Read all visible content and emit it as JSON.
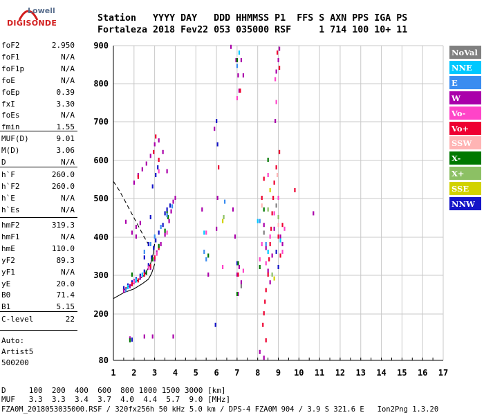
{
  "logo": {
    "line1": "Lowell",
    "line2": "DIGISONDE"
  },
  "header": {
    "line1": "Station   YYYY DAY   DDD HHMMSS P1  FFS S AXN PPS IGA PS",
    "line2": "Fortaleza 2018 Fev22 053 035000 RSF     1 714 100 10+ 11"
  },
  "parameters": {
    "group1": [
      {
        "name": "foF2",
        "value": "2.950"
      },
      {
        "name": "foF1",
        "value": "N/A"
      },
      {
        "name": "foF1p",
        "value": "N/A"
      },
      {
        "name": "foE",
        "value": "N/A"
      },
      {
        "name": "foEp",
        "value": "0.39"
      },
      {
        "name": "fxI",
        "value": "3.30"
      },
      {
        "name": "foEs",
        "value": "N/A"
      },
      {
        "name": "fmin",
        "value": "1.55"
      }
    ],
    "group2": [
      {
        "name": "MUF(D)",
        "value": "9.01"
      },
      {
        "name": "M(D)",
        "value": "3.06"
      },
      {
        "name": "D",
        "value": "N/A"
      }
    ],
    "group3": [
      {
        "name": "h`F",
        "value": "260.0"
      },
      {
        "name": "h`F2",
        "value": "260.0"
      },
      {
        "name": "h`E",
        "value": "N/A"
      },
      {
        "name": "h`Es",
        "value": "N/A"
      }
    ],
    "group4": [
      {
        "name": "hmF2",
        "value": "319.3"
      },
      {
        "name": "hmF1",
        "value": "N/A"
      },
      {
        "name": "hmE",
        "value": "110.0"
      },
      {
        "name": "yF2",
        "value": "89.3"
      },
      {
        "name": "yF1",
        "value": "N/A"
      },
      {
        "name": "yE",
        "value": "20.0"
      },
      {
        "name": "B0",
        "value": "71.4"
      },
      {
        "name": "B1",
        "value": "5.15"
      }
    ],
    "group5": [
      {
        "name": "C-level",
        "value": "22"
      }
    ],
    "auto": {
      "line1": "Auto:",
      "line2": "Artist5",
      "line3": "500200"
    }
  },
  "legend": [
    {
      "label": "NoVal",
      "color": "#808080",
      "text": "#ffffff"
    },
    {
      "label": "NNE",
      "color": "#00c8ff",
      "text": "#ffffff"
    },
    {
      "label": "E",
      "color": "#3a8cf0",
      "text": "#ffffff"
    },
    {
      "label": "W",
      "color": "#aa00aa",
      "text": "#ffffff"
    },
    {
      "label": "Vo-",
      "color": "#ff44c8",
      "text": "#ffffff"
    },
    {
      "label": "Vo+",
      "color": "#ee0030",
      "text": "#ffffff"
    },
    {
      "label": "SSW",
      "color": "#ffb4b4",
      "text": "#ffffff"
    },
    {
      "label": "X-",
      "color": "#007800",
      "text": "#ffffff"
    },
    {
      "label": "X+",
      "color": "#8cc064",
      "text": "#ffffff"
    },
    {
      "label": "SSE",
      "color": "#d2d200",
      "text": "#ffffff"
    },
    {
      "label": "NNW",
      "color": "#1414c8",
      "text": "#ffffff"
    }
  ],
  "footer": {
    "d_row": "D     100  200  400  600  800 1000 1500 3000 [km]",
    "muf_row": "MUF   3.3  3.3  3.4  3.7  4.0  4.4  5.7  9.0 [MHz]",
    "file_row": "FZA0M_2018053035000.RSF / 320fx256h 50 kHz 5.0 km / DPS-4 FZA0M 904 / 3.9 S 321.6 E   Ion2Png 1.3.20"
  },
  "chart_data": {
    "type": "scatter",
    "title": "",
    "xlabel": "",
    "ylabel": "",
    "xlim": [
      1,
      17
    ],
    "ylim": [
      80,
      900
    ],
    "x_ticks": [
      1,
      2,
      3,
      4,
      5,
      6,
      7,
      8,
      9,
      10,
      11,
      12,
      13,
      14,
      15,
      16,
      17
    ],
    "y_ticks": [
      80,
      200,
      300,
      400,
      500,
      600,
      700,
      800,
      900
    ],
    "y_scale": "reciprocal-like (ionogram virtual height)",
    "grid": true,
    "series": [
      {
        "name": "NNW",
        "color": "#1414c8",
        "points": [
          [
            1.5,
            265
          ],
          [
            1.7,
            272
          ],
          [
            1.9,
            280
          ],
          [
            2.1,
            288
          ],
          [
            2.3,
            297
          ],
          [
            2.5,
            308
          ],
          [
            2.7,
            325
          ],
          [
            2.85,
            345
          ],
          [
            2.95,
            370
          ],
          [
            3.05,
            390
          ],
          [
            3.2,
            410
          ],
          [
            3.4,
            430
          ],
          [
            3.5,
            460
          ],
          [
            3.6,
            470
          ],
          [
            3.75,
            480
          ],
          [
            2.5,
            345
          ],
          [
            2.7,
            380
          ],
          [
            2.8,
            450
          ],
          [
            2.9,
            530
          ],
          [
            3.05,
            560
          ],
          [
            3.15,
            580
          ],
          [
            6.0,
            700
          ],
          [
            6.05,
            640
          ],
          [
            5.95,
            170
          ],
          [
            7.0,
            330
          ],
          [
            9.0,
            320
          ],
          [
            8.9,
            360
          ],
          [
            1.9,
            132
          ]
        ]
      },
      {
        "name": "W",
        "color": "#aa00aa",
        "points": [
          [
            1.5,
            258
          ],
          [
            1.8,
            270
          ],
          [
            2.0,
            283
          ],
          [
            2.3,
            292
          ],
          [
            2.6,
            305
          ],
          [
            2.8,
            318
          ],
          [
            3.0,
            340
          ],
          [
            3.1,
            358
          ],
          [
            3.3,
            380
          ],
          [
            3.5,
            405
          ],
          [
            3.7,
            440
          ],
          [
            3.8,
            465
          ],
          [
            3.9,
            490
          ],
          [
            4.0,
            500
          ],
          [
            2.0,
            540
          ],
          [
            2.2,
            560
          ],
          [
            2.4,
            575
          ],
          [
            2.6,
            590
          ],
          [
            2.8,
            610
          ],
          [
            3.0,
            640
          ],
          [
            3.2,
            650
          ],
          [
            3.4,
            620
          ],
          [
            3.6,
            570
          ],
          [
            1.9,
            410
          ],
          [
            2.1,
            425
          ],
          [
            2.3,
            435
          ],
          [
            1.6,
            438
          ],
          [
            2.1,
            400
          ],
          [
            6.7,
            895
          ],
          [
            6.95,
            860
          ],
          [
            7.05,
            820
          ],
          [
            7.1,
            780
          ],
          [
            7.2,
            860
          ],
          [
            7.3,
            820
          ],
          [
            7.0,
            300
          ],
          [
            7.1,
            320
          ],
          [
            7.2,
            280
          ],
          [
            6.8,
            470
          ],
          [
            6.9,
            400
          ],
          [
            7.05,
            250
          ],
          [
            8.3,
            430
          ],
          [
            8.4,
            370
          ],
          [
            8.5,
            310
          ],
          [
            8.6,
            280
          ],
          [
            8.7,
            350
          ],
          [
            8.8,
            420
          ],
          [
            8.85,
            700
          ],
          [
            8.9,
            830
          ],
          [
            9.0,
            860
          ],
          [
            9.05,
            890
          ],
          [
            9.1,
            400
          ],
          [
            9.2,
            380
          ],
          [
            6.0,
            420
          ],
          [
            6.05,
            500
          ],
          [
            5.9,
            680
          ],
          [
            5.3,
            470
          ],
          [
            2.5,
            140
          ],
          [
            2.9,
            140
          ],
          [
            1.8,
            135
          ],
          [
            3.9,
            140
          ],
          [
            8.3,
            85
          ],
          [
            8.1,
            100
          ],
          [
            5.6,
            300
          ],
          [
            10.7,
            460
          ]
        ]
      },
      {
        "name": "Vo+",
        "color": "#ee0030",
        "points": [
          [
            1.6,
            262
          ],
          [
            1.9,
            275
          ],
          [
            2.2,
            285
          ],
          [
            2.5,
            300
          ],
          [
            2.8,
            322
          ],
          [
            3.0,
            345
          ],
          [
            3.2,
            370
          ],
          [
            8.4,
            260
          ],
          [
            8.5,
            300
          ],
          [
            8.55,
            340
          ],
          [
            8.6,
            380
          ],
          [
            8.65,
            420
          ],
          [
            8.7,
            460
          ],
          [
            8.75,
            500
          ],
          [
            8.8,
            540
          ],
          [
            8.9,
            580
          ],
          [
            9.05,
            620
          ],
          [
            8.35,
            230
          ],
          [
            8.3,
            200
          ],
          [
            8.25,
            170
          ],
          [
            8.4,
            130
          ],
          [
            9.0,
            400
          ],
          [
            9.1,
            350
          ],
          [
            9.2,
            430
          ],
          [
            9.8,
            520
          ],
          [
            8.2,
            500
          ],
          [
            8.3,
            550
          ],
          [
            7.05,
            300
          ],
          [
            7.15,
            780
          ],
          [
            2.2,
            555
          ],
          [
            2.95,
            620
          ],
          [
            3.05,
            660
          ],
          [
            3.2,
            600
          ],
          [
            6.1,
            580
          ],
          [
            9.05,
            840
          ],
          [
            8.95,
            880
          ]
        ]
      },
      {
        "name": "Vo-",
        "color": "#ff44c8",
        "points": [
          [
            2.0,
            280
          ],
          [
            2.4,
            298
          ],
          [
            2.7,
            318
          ],
          [
            3.1,
            355
          ],
          [
            3.6,
            410
          ],
          [
            8.2,
            380
          ],
          [
            8.4,
            330
          ],
          [
            8.6,
            400
          ],
          [
            8.8,
            460
          ],
          [
            9.0,
            500
          ],
          [
            9.2,
            360
          ],
          [
            9.3,
            420
          ],
          [
            8.9,
            750
          ],
          [
            8.85,
            810
          ],
          [
            7.0,
            760
          ],
          [
            7.3,
            310
          ],
          [
            6.3,
            320
          ],
          [
            5.5,
            410
          ],
          [
            8.1,
            340
          ],
          [
            8.5,
            560
          ],
          [
            3.2,
            570
          ]
        ]
      },
      {
        "name": "X-",
        "color": "#007800",
        "points": [
          [
            2.6,
            305
          ],
          [
            2.9,
            340
          ],
          [
            3.2,
            375
          ],
          [
            3.5,
            415
          ],
          [
            3.65,
            450
          ],
          [
            1.9,
            300
          ],
          [
            7.0,
            860
          ],
          [
            7.05,
            330
          ],
          [
            8.3,
            470
          ],
          [
            8.5,
            600
          ],
          [
            8.1,
            320
          ],
          [
            7.0,
            250
          ],
          [
            5.6,
            350
          ],
          [
            1.8,
            130
          ],
          [
            3.6,
            460
          ]
        ]
      },
      {
        "name": "E",
        "color": "#3a8cf0",
        "points": [
          [
            2.5,
            360
          ],
          [
            2.8,
            380
          ],
          [
            3.0,
            400
          ],
          [
            3.3,
            425
          ],
          [
            3.6,
            455
          ],
          [
            3.85,
            478
          ],
          [
            1.6,
            260
          ],
          [
            7.0,
            845
          ],
          [
            8.1,
            440
          ],
          [
            8.4,
            380
          ],
          [
            5.5,
            340
          ],
          [
            5.4,
            360
          ],
          [
            6.4,
            490
          ]
        ]
      },
      {
        "name": "NNE",
        "color": "#00c8ff",
        "points": [
          [
            1.7,
            268
          ],
          [
            2.1,
            285
          ],
          [
            2.4,
            300
          ],
          [
            8.0,
            440
          ],
          [
            8.5,
            360
          ],
          [
            9.1,
            390
          ],
          [
            7.1,
            880
          ],
          [
            5.4,
            410
          ]
        ]
      },
      {
        "name": "X+",
        "color": "#8cc064",
        "points": [
          [
            8.7,
            300
          ],
          [
            9.0,
            450
          ],
          [
            8.5,
            470
          ],
          [
            6.35,
            450
          ]
        ]
      },
      {
        "name": "SSE",
        "color": "#d2d200",
        "points": [
          [
            8.8,
            290
          ],
          [
            8.6,
            520
          ],
          [
            6.3,
            440
          ]
        ]
      },
      {
        "name": "SSW",
        "color": "#ffb4b4",
        "points": [
          [
            8.2,
            480
          ],
          [
            9.0,
            430
          ],
          [
            8.95,
            560
          ]
        ]
      },
      {
        "name": "NoVal",
        "color": "#808080",
        "points": [
          [
            8.3,
            410
          ],
          [
            8.9,
            480
          ],
          [
            7.2,
            270
          ]
        ]
      }
    ],
    "lines": [
      {
        "name": "profile",
        "color": "#000000",
        "style": "solid",
        "points": [
          [
            1.0,
            240
          ],
          [
            1.5,
            255
          ],
          [
            2.0,
            265
          ],
          [
            2.4,
            278
          ],
          [
            2.7,
            290
          ],
          [
            2.85,
            305
          ],
          [
            2.95,
            320
          ],
          [
            3.0,
            330
          ]
        ]
      },
      {
        "name": "trace",
        "color": "#000000",
        "style": "solid",
        "points": [
          [
            1.5,
            262
          ],
          [
            2.0,
            280
          ],
          [
            2.5,
            300
          ],
          [
            2.8,
            330
          ],
          [
            2.95,
            360
          ],
          [
            3.0,
            382
          ]
        ]
      },
      {
        "name": "dashed-profile",
        "color": "#000000",
        "style": "dashed",
        "points": [
          [
            1.0,
            545
          ],
          [
            1.3,
            520
          ],
          [
            1.6,
            490
          ],
          [
            1.9,
            460
          ],
          [
            2.2,
            430
          ],
          [
            2.5,
            400
          ],
          [
            2.8,
            372
          ]
        ]
      }
    ]
  }
}
